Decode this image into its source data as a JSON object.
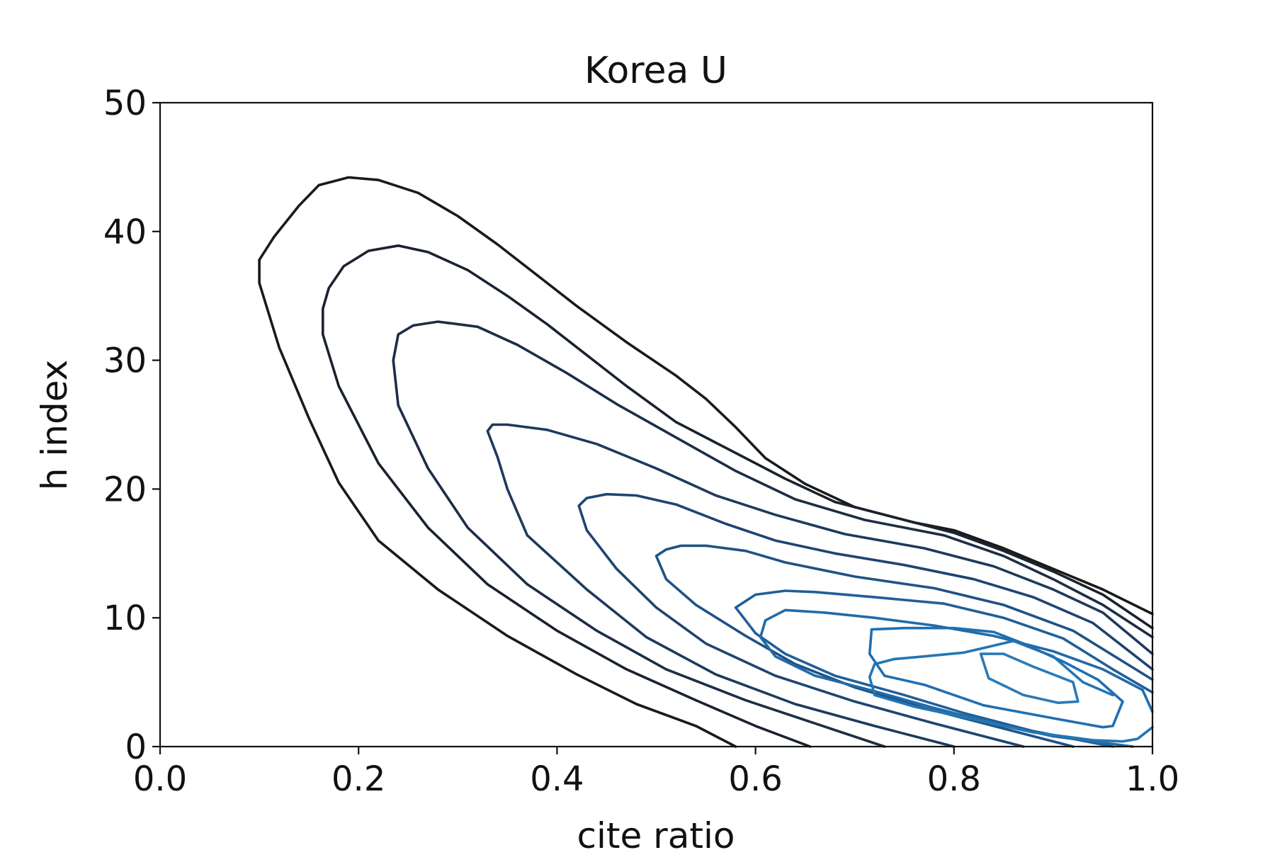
{
  "chart_data": {
    "type": "contour",
    "title": "Korea U",
    "xlabel": "cite ratio",
    "ylabel": "h index",
    "xlim": [
      0.0,
      1.0
    ],
    "ylim": [
      0,
      50
    ],
    "xticks": [
      0.0,
      0.2,
      0.4,
      0.6,
      0.8,
      1.0
    ],
    "xtick_labels": [
      "0.0",
      "0.2",
      "0.4",
      "0.6",
      "0.8",
      "1.0"
    ],
    "yticks": [
      0,
      10,
      20,
      30,
      40,
      50
    ],
    "ytick_labels": [
      "0",
      "10",
      "20",
      "30",
      "40",
      "50"
    ],
    "grid": false,
    "legend": false,
    "contours": [
      {
        "color": "#1a1a1a",
        "points": [
          [
            0.58,
            0
          ],
          [
            0.54,
            1.6
          ],
          [
            0.48,
            3.3
          ],
          [
            0.42,
            5.6
          ],
          [
            0.35,
            8.6
          ],
          [
            0.28,
            12.2
          ],
          [
            0.22,
            16
          ],
          [
            0.18,
            20.5
          ],
          [
            0.15,
            25.5
          ],
          [
            0.12,
            31
          ],
          [
            0.1,
            36
          ],
          [
            0.1,
            37.8
          ],
          [
            0.115,
            39.6
          ],
          [
            0.14,
            42
          ],
          [
            0.16,
            43.6
          ],
          [
            0.19,
            44.2
          ],
          [
            0.22,
            44
          ],
          [
            0.26,
            43
          ],
          [
            0.3,
            41.2
          ],
          [
            0.34,
            39
          ],
          [
            0.38,
            36.6
          ],
          [
            0.42,
            34.2
          ],
          [
            0.47,
            31.4
          ],
          [
            0.52,
            28.8
          ],
          [
            0.55,
            27
          ],
          [
            0.58,
            24.8
          ],
          [
            0.61,
            22.4
          ],
          [
            0.65,
            20.4
          ],
          [
            0.7,
            18.6
          ],
          [
            0.76,
            17.4
          ],
          [
            0.8,
            16.8
          ],
          [
            0.85,
            15.4
          ],
          [
            0.9,
            13.8
          ],
          [
            0.95,
            12.2
          ],
          [
            1.0,
            10.3
          ]
        ]
      },
      {
        "color": "#1a2230",
        "points": [
          [
            0.655,
            0
          ],
          [
            0.6,
            1.6
          ],
          [
            0.54,
            3.6
          ],
          [
            0.47,
            6
          ],
          [
            0.4,
            9
          ],
          [
            0.33,
            12.6
          ],
          [
            0.27,
            17
          ],
          [
            0.22,
            22
          ],
          [
            0.18,
            28
          ],
          [
            0.164,
            32
          ],
          [
            0.164,
            34
          ],
          [
            0.17,
            35.6
          ],
          [
            0.185,
            37.3
          ],
          [
            0.21,
            38.5
          ],
          [
            0.24,
            38.9
          ],
          [
            0.27,
            38.4
          ],
          [
            0.31,
            37
          ],
          [
            0.35,
            35
          ],
          [
            0.39,
            32.8
          ],
          [
            0.43,
            30.4
          ],
          [
            0.47,
            28
          ],
          [
            0.52,
            25.2
          ],
          [
            0.58,
            22.8
          ],
          [
            0.63,
            20.8
          ],
          [
            0.68,
            19
          ],
          [
            0.74,
            17.8
          ],
          [
            0.8,
            16.6
          ],
          [
            0.85,
            15.2
          ],
          [
            0.9,
            13.6
          ],
          [
            0.95,
            11.8
          ],
          [
            1.0,
            9.2
          ]
        ]
      },
      {
        "color": "#1c2e45",
        "points": [
          [
            0.73,
            0
          ],
          [
            0.66,
            1.8
          ],
          [
            0.59,
            3.6
          ],
          [
            0.51,
            6
          ],
          [
            0.44,
            9
          ],
          [
            0.37,
            12.6
          ],
          [
            0.31,
            17
          ],
          [
            0.27,
            21.6
          ],
          [
            0.24,
            26.5
          ],
          [
            0.235,
            30
          ],
          [
            0.24,
            32
          ],
          [
            0.255,
            32.7
          ],
          [
            0.28,
            33
          ],
          [
            0.32,
            32.6
          ],
          [
            0.36,
            31.2
          ],
          [
            0.41,
            29
          ],
          [
            0.46,
            26.6
          ],
          [
            0.52,
            24
          ],
          [
            0.58,
            21.4
          ],
          [
            0.64,
            19.2
          ],
          [
            0.71,
            17.6
          ],
          [
            0.79,
            16.4
          ],
          [
            0.85,
            14.8
          ],
          [
            0.9,
            13
          ],
          [
            0.95,
            11
          ],
          [
            1.0,
            8.5
          ]
        ]
      },
      {
        "color": "#1d3a5c",
        "points": [
          [
            0.8,
            0
          ],
          [
            0.72,
            1.6
          ],
          [
            0.64,
            3.3
          ],
          [
            0.56,
            5.6
          ],
          [
            0.49,
            8.5
          ],
          [
            0.43,
            12.2
          ],
          [
            0.37,
            16.4
          ],
          [
            0.35,
            20
          ],
          [
            0.34,
            22.5
          ],
          [
            0.33,
            24.5
          ],
          [
            0.335,
            25
          ],
          [
            0.35,
            25
          ],
          [
            0.39,
            24.6
          ],
          [
            0.44,
            23.5
          ],
          [
            0.5,
            21.6
          ],
          [
            0.56,
            19.5
          ],
          [
            0.62,
            18
          ],
          [
            0.69,
            16.5
          ],
          [
            0.77,
            15.4
          ],
          [
            0.84,
            14
          ],
          [
            0.9,
            12.2
          ],
          [
            0.95,
            10.4
          ],
          [
            1.0,
            7.2
          ]
        ]
      },
      {
        "color": "#1e4570",
        "points": [
          [
            0.87,
            0
          ],
          [
            0.78,
            1.8
          ],
          [
            0.7,
            3.5
          ],
          [
            0.62,
            5.5
          ],
          [
            0.55,
            8
          ],
          [
            0.5,
            10.8
          ],
          [
            0.46,
            13.8
          ],
          [
            0.43,
            16.8
          ],
          [
            0.422,
            18.7
          ],
          [
            0.43,
            19.3
          ],
          [
            0.45,
            19.6
          ],
          [
            0.48,
            19.5
          ],
          [
            0.52,
            18.8
          ],
          [
            0.57,
            17.3
          ],
          [
            0.62,
            16
          ],
          [
            0.68,
            15
          ],
          [
            0.75,
            14.1
          ],
          [
            0.82,
            13
          ],
          [
            0.88,
            11.6
          ],
          [
            0.94,
            9.6
          ],
          [
            1.0,
            6
          ]
        ]
      },
      {
        "color": "#1f5285",
        "points": [
          [
            0.92,
            0
          ],
          [
            0.84,
            1.6
          ],
          [
            0.77,
            3
          ],
          [
            0.7,
            4.6
          ],
          [
            0.64,
            6.4
          ],
          [
            0.59,
            8.6
          ],
          [
            0.54,
            11
          ],
          [
            0.51,
            13
          ],
          [
            0.5,
            14.8
          ],
          [
            0.51,
            15.3
          ],
          [
            0.525,
            15.6
          ],
          [
            0.55,
            15.6
          ],
          [
            0.59,
            15.2
          ],
          [
            0.63,
            14.3
          ],
          [
            0.7,
            13.2
          ],
          [
            0.78,
            12.3
          ],
          [
            0.85,
            11
          ],
          [
            0.92,
            9
          ],
          [
            1.0,
            5.2
          ]
        ]
      },
      {
        "color": "#205f98",
        "points": [
          [
            0.96,
            0
          ],
          [
            0.88,
            1.2
          ],
          [
            0.81,
            2.6
          ],
          [
            0.75,
            4
          ],
          [
            0.68,
            5.5
          ],
          [
            0.63,
            7.2
          ],
          [
            0.6,
            8.8
          ],
          [
            0.58,
            10.8
          ],
          [
            0.6,
            11.8
          ],
          [
            0.63,
            12.1
          ],
          [
            0.66,
            12
          ],
          [
            0.72,
            11.6
          ],
          [
            0.79,
            11.1
          ],
          [
            0.85,
            10
          ],
          [
            0.91,
            8.4
          ],
          [
            0.96,
            6
          ],
          [
            1.0,
            4.2
          ]
        ]
      },
      {
        "color": "#216ba8",
        "points": [
          [
            0.98,
            0
          ],
          [
            0.94,
            0.4
          ],
          [
            0.9,
            0.8
          ],
          [
            0.84,
            1.8
          ],
          [
            0.78,
            3
          ],
          [
            0.72,
            4.3
          ],
          [
            0.66,
            5.5
          ],
          [
            0.62,
            7
          ],
          [
            0.605,
            8.5
          ],
          [
            0.61,
            9.8
          ],
          [
            0.63,
            10.6
          ],
          [
            0.67,
            10.4
          ],
          [
            0.72,
            10
          ],
          [
            0.78,
            9.4
          ],
          [
            0.84,
            8.6
          ],
          [
            0.9,
            7.4
          ],
          [
            0.95,
            6
          ],
          [
            0.99,
            4.4
          ],
          [
            1.0,
            2.7
          ]
        ]
      },
      {
        "color": "#2276b4",
        "points": [
          [
            1.0,
            1.5
          ],
          [
            0.985,
            0.6
          ],
          [
            0.97,
            0.4
          ],
          [
            0.94,
            0.5
          ],
          [
            0.88,
            1.1
          ],
          [
            0.82,
            2.1
          ],
          [
            0.76,
            3.1
          ],
          [
            0.72,
            4
          ],
          [
            0.715,
            5.4
          ],
          [
            0.72,
            6.4
          ],
          [
            0.74,
            6.8
          ],
          [
            0.77,
            7
          ],
          [
            0.81,
            7.3
          ],
          [
            0.86,
            8.2
          ],
          [
            0.9,
            7
          ],
          [
            0.93,
            5
          ],
          [
            0.96,
            4
          ]
        ]
      },
      {
        "color": "#1f6fb2",
        "points": [
          [
            0.717,
            9.1
          ],
          [
            0.75,
            9.2
          ],
          [
            0.8,
            9.2
          ],
          [
            0.84,
            8.9
          ],
          [
            0.87,
            8
          ],
          [
            0.91,
            6.6
          ],
          [
            0.945,
            5.2
          ],
          [
            0.97,
            3.5
          ],
          [
            0.96,
            1.6
          ],
          [
            0.95,
            1.5
          ],
          [
            0.9,
            2.2
          ],
          [
            0.83,
            3.2
          ],
          [
            0.77,
            4.8
          ],
          [
            0.73,
            5.5
          ],
          [
            0.715,
            7.2
          ],
          [
            0.717,
            9.1
          ]
        ]
      },
      {
        "color": "#2a7ab8",
        "points": [
          [
            0.827,
            7.2
          ],
          [
            0.85,
            7.2
          ],
          [
            0.88,
            6.2
          ],
          [
            0.92,
            5
          ],
          [
            0.925,
            3.5
          ],
          [
            0.905,
            3.4
          ],
          [
            0.87,
            4
          ],
          [
            0.835,
            5.3
          ],
          [
            0.827,
            7.2
          ]
        ]
      }
    ]
  }
}
